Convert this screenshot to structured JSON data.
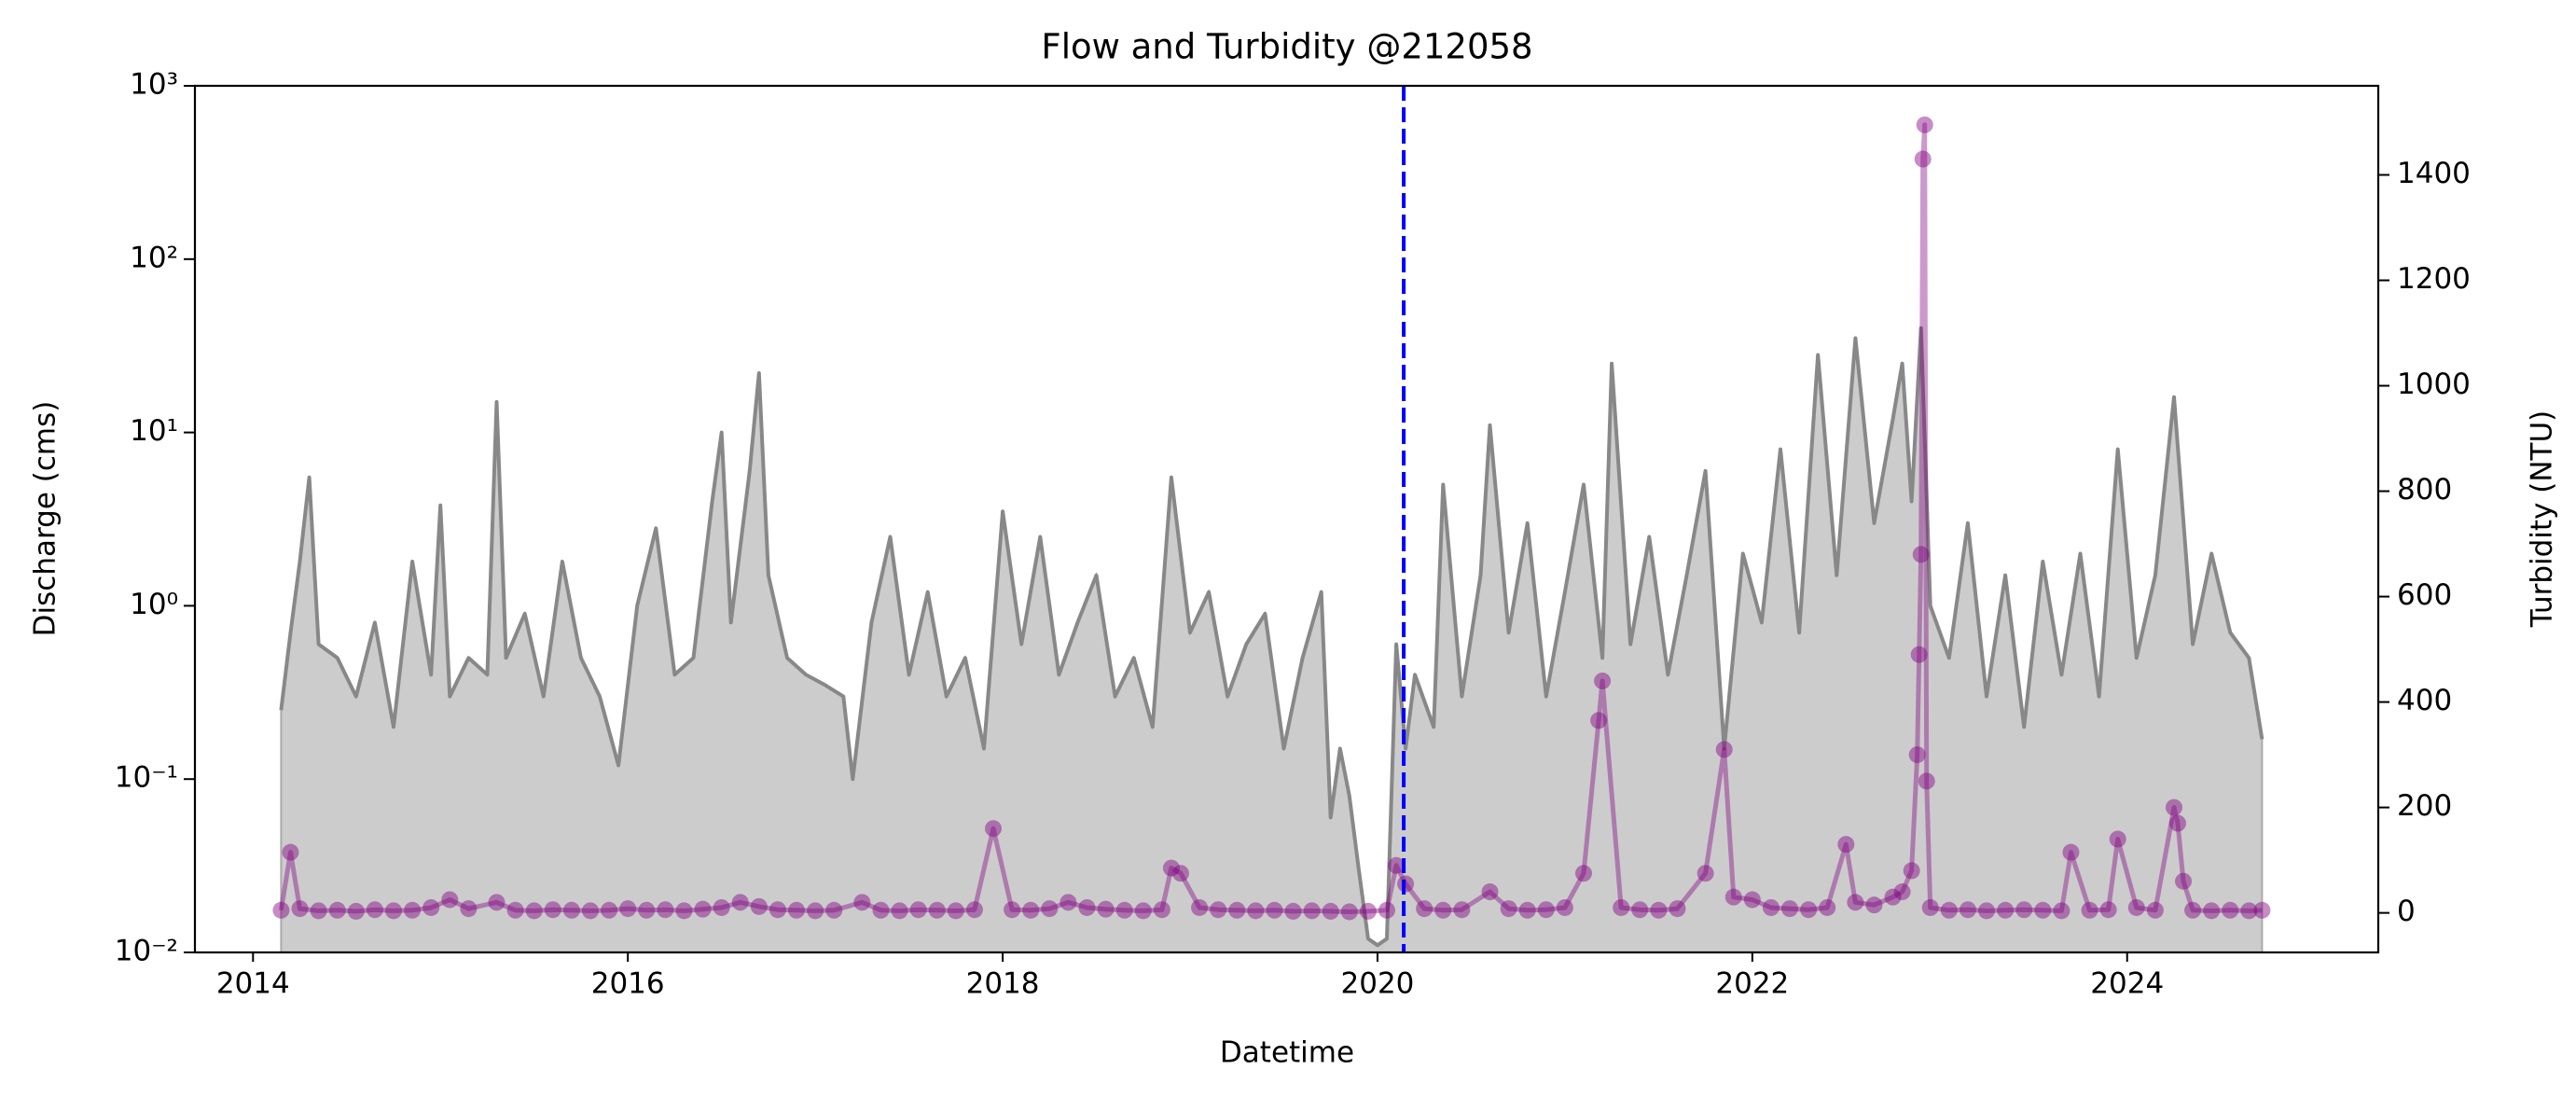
{
  "chart_data": {
    "type": "line",
    "title": "Flow and Turbidity @212058",
    "x_label": "Datetime",
    "y_label": "Discharge (cms)",
    "y2_label": "Turbidity (NTU)",
    "y2_color": "#800080",
    "xlim": [
      2013.69,
      2025.34
    ],
    "xticks": [
      2014,
      2016,
      2018,
      2020,
      2022,
      2024
    ],
    "ylim": [
      0.01,
      1000
    ],
    "y_scale": "log",
    "yticks": [
      {
        "value": 0.01,
        "label": "10⁻²"
      },
      {
        "value": 0.1,
        "label": "10⁻¹"
      },
      {
        "value": 1,
        "label": "10⁰"
      },
      {
        "value": 10,
        "label": "10¹"
      },
      {
        "value": 100,
        "label": "10²"
      },
      {
        "value": 1000,
        "label": "10³"
      }
    ],
    "y2lim": [
      -75,
      1569
    ],
    "y2ticks": [
      0,
      200,
      400,
      600,
      800,
      1000,
      1200,
      1400
    ],
    "vline": {
      "x": 2020.14,
      "color": "#0000ff",
      "style": "dashed"
    },
    "series": [
      {
        "color": "#888888",
        "fill": "#cccccc",
        "axis": "y",
        "x": [
          2014.15,
          2014.2,
          2014.25,
          2014.3,
          2014.35,
          2014.45,
          2014.55,
          2014.65,
          2014.75,
          2014.85,
          2014.95,
          2015.0,
          2015.05,
          2015.15,
          2015.25,
          2015.3,
          2015.35,
          2015.45,
          2015.55,
          2015.65,
          2015.75,
          2015.85,
          2015.95,
          2016.05,
          2016.15,
          2016.25,
          2016.35,
          2016.45,
          2016.5,
          2016.55,
          2016.65,
          2016.7,
          2016.75,
          2016.85,
          2016.95,
          2017.05,
          2017.15,
          2017.2,
          2017.3,
          2017.4,
          2017.5,
          2017.6,
          2017.7,
          2017.8,
          2017.9,
          2018.0,
          2018.1,
          2018.2,
          2018.3,
          2018.4,
          2018.5,
          2018.6,
          2018.7,
          2018.8,
          2018.9,
          2019.0,
          2019.1,
          2019.2,
          2019.3,
          2019.4,
          2019.5,
          2019.6,
          2019.7,
          2019.75,
          2019.8,
          2019.85,
          2019.9,
          2019.95,
          2020.0,
          2020.05,
          2020.1,
          2020.15,
          2020.2,
          2020.3,
          2020.35,
          2020.45,
          2020.55,
          2020.6,
          2020.7,
          2020.8,
          2020.9,
          2021.0,
          2021.1,
          2021.2,
          2021.25,
          2021.35,
          2021.45,
          2021.55,
          2021.65,
          2021.75,
          2021.85,
          2021.95,
          2022.05,
          2022.15,
          2022.25,
          2022.35,
          2022.45,
          2022.55,
          2022.65,
          2022.75,
          2022.8,
          2022.85,
          2022.9,
          2022.95,
          2023.05,
          2023.15,
          2023.25,
          2023.35,
          2023.45,
          2023.55,
          2023.65,
          2023.75,
          2023.85,
          2023.95,
          2024.05,
          2024.15,
          2024.25,
          2024.35,
          2024.45,
          2024.55,
          2024.65,
          2024.72
        ],
        "values": [
          0.25,
          0.7,
          1.8,
          5.5,
          0.6,
          0.5,
          0.3,
          0.8,
          0.2,
          1.8,
          0.4,
          3.8,
          0.3,
          0.5,
          0.4,
          15,
          0.5,
          0.9,
          0.3,
          1.8,
          0.5,
          0.3,
          0.12,
          1.0,
          2.8,
          0.4,
          0.5,
          4,
          10,
          0.8,
          6,
          22,
          1.5,
          0.5,
          0.4,
          0.35,
          0.3,
          0.1,
          0.8,
          2.5,
          0.4,
          1.2,
          0.3,
          0.5,
          0.15,
          3.5,
          0.6,
          2.5,
          0.4,
          0.8,
          1.5,
          0.3,
          0.5,
          0.2,
          5.5,
          0.7,
          1.2,
          0.3,
          0.6,
          0.9,
          0.15,
          0.5,
          1.2,
          0.06,
          0.15,
          0.08,
          0.03,
          0.012,
          0.011,
          0.012,
          0.6,
          0.15,
          0.4,
          0.2,
          5,
          0.3,
          1.5,
          11,
          0.7,
          3,
          0.3,
          1.2,
          5,
          0.5,
          25,
          0.6,
          2.5,
          0.4,
          1.5,
          6,
          0.15,
          2,
          0.8,
          8,
          0.7,
          28,
          1.5,
          35,
          3,
          12,
          25,
          4,
          40,
          1.0,
          0.5,
          3,
          0.3,
          1.5,
          0.2,
          1.8,
          0.4,
          2,
          0.3,
          8,
          0.5,
          1.5,
          16,
          0.6,
          2,
          0.7,
          0.5,
          0.17
        ]
      },
      {
        "color": "#800080",
        "axis": "y2",
        "markers": true,
        "x": [
          2014.15,
          2014.2,
          2014.25,
          2014.35,
          2014.45,
          2014.55,
          2014.65,
          2014.75,
          2014.85,
          2014.95,
          2015.05,
          2015.15,
          2015.3,
          2015.4,
          2015.5,
          2015.6,
          2015.7,
          2015.8,
          2015.9,
          2016.0,
          2016.1,
          2016.2,
          2016.3,
          2016.4,
          2016.5,
          2016.6,
          2016.7,
          2016.8,
          2016.9,
          2017.0,
          2017.1,
          2017.25,
          2017.35,
          2017.45,
          2017.55,
          2017.65,
          2017.75,
          2017.85,
          2017.95,
          2018.05,
          2018.15,
          2018.25,
          2018.35,
          2018.45,
          2018.55,
          2018.65,
          2018.75,
          2018.85,
          2018.9,
          2018.95,
          2019.05,
          2019.15,
          2019.25,
          2019.35,
          2019.45,
          2019.55,
          2019.65,
          2019.75,
          2019.85,
          2019.95,
          2020.05,
          2020.1,
          2020.15,
          2020.25,
          2020.35,
          2020.45,
          2020.6,
          2020.7,
          2020.8,
          2020.9,
          2021.0,
          2021.1,
          2021.18,
          2021.2,
          2021.3,
          2021.4,
          2021.5,
          2021.6,
          2021.75,
          2021.85,
          2021.9,
          2022.0,
          2022.1,
          2022.2,
          2022.3,
          2022.4,
          2022.5,
          2022.55,
          2022.65,
          2022.75,
          2022.8,
          2022.85,
          2022.88,
          2022.89,
          2022.9,
          2022.91,
          2022.92,
          2022.93,
          2022.95,
          2023.05,
          2023.15,
          2023.25,
          2023.35,
          2023.45,
          2023.55,
          2023.65,
          2023.7,
          2023.8,
          2023.9,
          2023.95,
          2024.05,
          2024.15,
          2024.25,
          2024.27,
          2024.3,
          2024.35,
          2024.45,
          2024.55,
          2024.65,
          2024.72
        ],
        "values": [
          5,
          115,
          8,
          4,
          5,
          3,
          6,
          4,
          5,
          10,
          25,
          8,
          20,
          5,
          4,
          6,
          5,
          4,
          5,
          8,
          5,
          6,
          4,
          7,
          10,
          20,
          12,
          6,
          5,
          4,
          5,
          20,
          5,
          4,
          6,
          5,
          4,
          6,
          160,
          6,
          5,
          8,
          20,
          10,
          7,
          5,
          4,
          6,
          85,
          75,
          10,
          6,
          5,
          4,
          5,
          3,
          4,
          3,
          2,
          3,
          5,
          90,
          55,
          8,
          5,
          6,
          40,
          8,
          5,
          6,
          10,
          75,
          365,
          440,
          10,
          6,
          5,
          8,
          75,
          310,
          30,
          25,
          10,
          8,
          6,
          10,
          130,
          20,
          15,
          30,
          40,
          80,
          300,
          490,
          680,
          1430,
          1495,
          250,
          10,
          5,
          6,
          4,
          5,
          6,
          5,
          4,
          115,
          5,
          6,
          140,
          10,
          5,
          200,
          170,
          60,
          5,
          4,
          5,
          4,
          5
        ]
      }
    ]
  }
}
